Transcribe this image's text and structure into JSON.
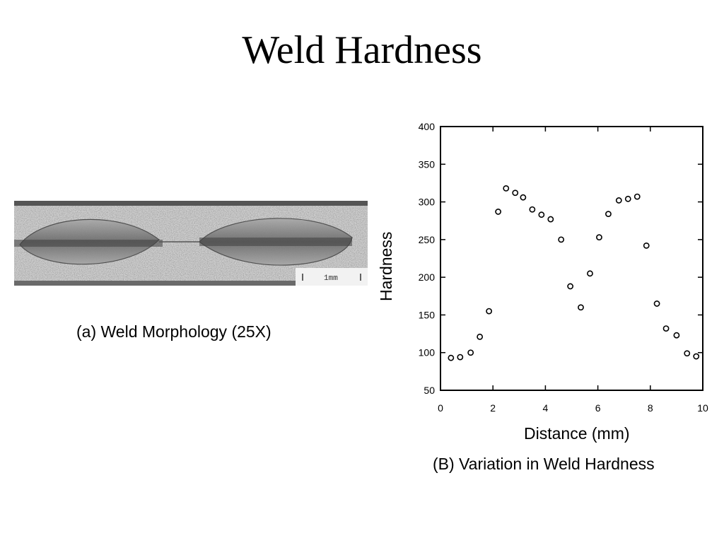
{
  "slide": {
    "title": "Weld Hardness",
    "caption_a": "(a) Weld Morphology (25X)",
    "caption_b": "(B) Variation in Weld Hardness"
  },
  "micrograph": {
    "scale_label": "1mm"
  },
  "chart_data": {
    "type": "scatter",
    "title": "",
    "xlabel": "Distance (mm)",
    "ylabel": "Hardness",
    "xlim": [
      0,
      10
    ],
    "ylim": [
      50,
      400
    ],
    "xticks": [
      0,
      2,
      4,
      6,
      8,
      10
    ],
    "yticks": [
      50,
      100,
      150,
      200,
      250,
      300,
      350,
      400
    ],
    "grid": false,
    "marker": "open-circle",
    "series": [
      {
        "x": [
          0.4,
          0.75,
          1.15,
          1.5,
          1.85,
          2.2,
          2.5,
          2.85,
          3.15,
          3.5,
          3.85,
          4.2,
          4.6,
          4.95,
          5.35,
          5.7,
          6.05,
          6.4,
          6.8,
          7.15,
          7.5,
          7.85,
          8.25,
          8.6,
          9.0,
          9.4,
          9.75
        ],
        "y": [
          93,
          94,
          100,
          121,
          155,
          287,
          318,
          312,
          306,
          290,
          283,
          277,
          250,
          188,
          160,
          205,
          253,
          284,
          302,
          304,
          307,
          242,
          165,
          132,
          123,
          99,
          95
        ]
      }
    ]
  }
}
